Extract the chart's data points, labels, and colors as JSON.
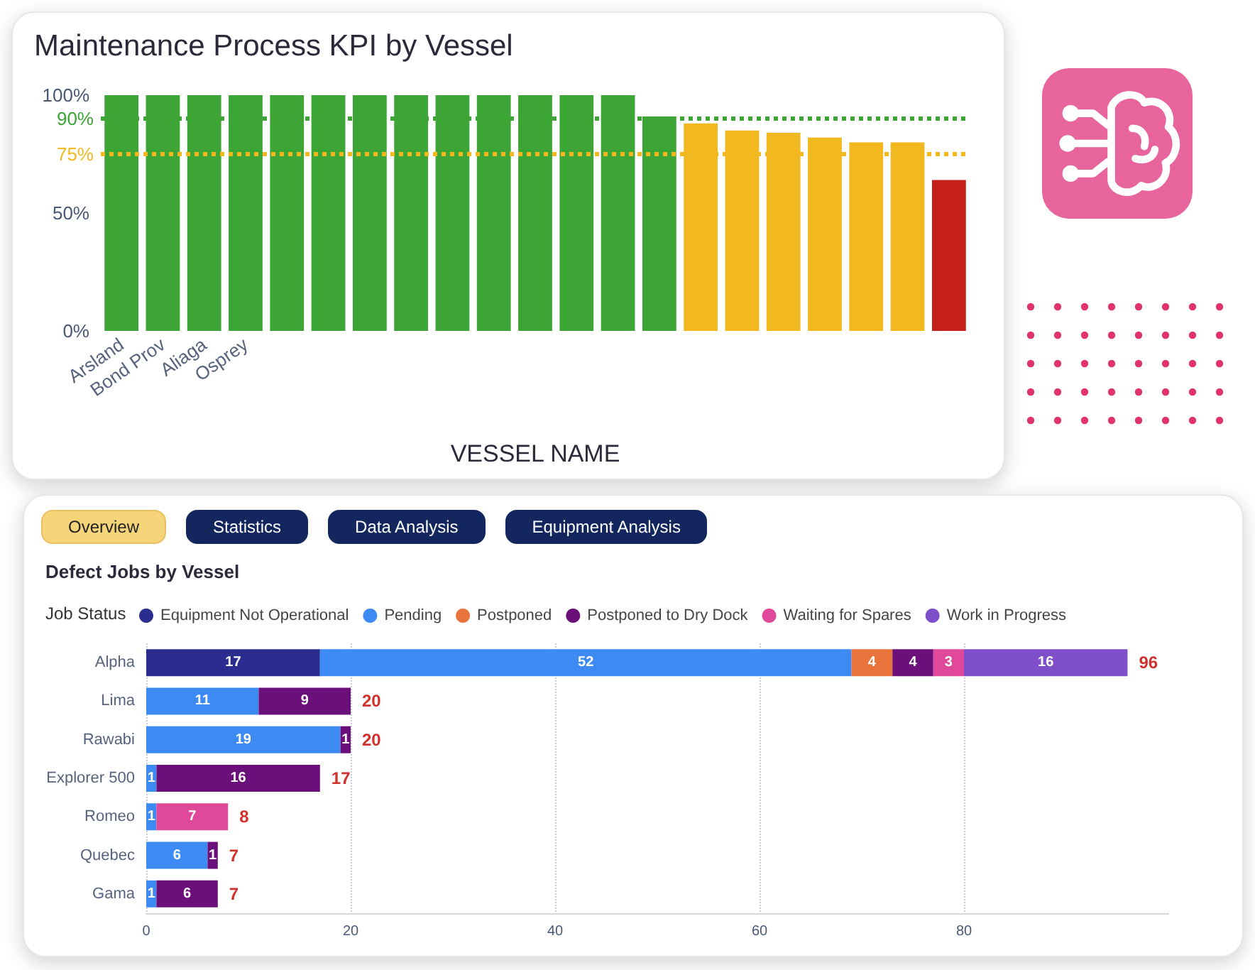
{
  "chart_data": [
    {
      "type": "bar",
      "title": "Maintenance Process KPI by Vessel",
      "xlabel": "VESSEL NAME",
      "categories": [
        "Arsland",
        "Bond Prov",
        "Aliaga",
        "Osprey",
        null,
        null,
        null,
        null,
        null,
        null,
        null,
        null,
        null,
        null,
        null,
        null,
        null,
        null,
        null,
        null,
        null
      ],
      "values": [
        100,
        100,
        100,
        100,
        100,
        100,
        100,
        100,
        100,
        100,
        100,
        100,
        100,
        91,
        88,
        85,
        84,
        82,
        80,
        80,
        64
      ],
      "colors": [
        "#3da535",
        "#3da535",
        "#3da535",
        "#3da535",
        "#3da535",
        "#3da535",
        "#3da535",
        "#3da535",
        "#3da535",
        "#3da535",
        "#3da535",
        "#3da535",
        "#3da535",
        "#3da535",
        "#f2b81f",
        "#f2b81f",
        "#f2b81f",
        "#f2b81f",
        "#f2b81f",
        "#f2b81f",
        "#c41f18"
      ],
      "ylim": [
        0,
        100
      ],
      "yticks": [
        {
          "value": 0,
          "label": "0%"
        },
        {
          "value": 50,
          "label": "50%"
        },
        {
          "value": 100,
          "label": "100%"
        }
      ],
      "ref_lines": [
        {
          "axis": "y",
          "value": 90,
          "label": "90%",
          "color": "#3da535",
          "line_style": "dotted"
        },
        {
          "axis": "y",
          "value": 75,
          "label": "75%",
          "color": "#f2b81f",
          "line_style": "dotted"
        }
      ]
    },
    {
      "type": "bar",
      "orientation": "horizontal",
      "stacked": true,
      "title": "Defect Jobs by Vessel",
      "legend_title": "Job Status",
      "annotations": [
        "Overview",
        "Statistics",
        "Data Analysis",
        "Equipment Analysis"
      ],
      "categories": [
        "Alpha",
        "Lima",
        "Rawabi",
        "Explorer 500",
        "Romeo",
        "Quebec",
        "Gama"
      ],
      "series": [
        {
          "name": "Equipment Not Operational",
          "color": "#2b2d8e",
          "values": [
            17,
            null,
            null,
            null,
            null,
            null,
            null
          ]
        },
        {
          "name": "Pending",
          "color": "#3d8bf2",
          "values": [
            52,
            11,
            19,
            1,
            1,
            6,
            1
          ]
        },
        {
          "name": "Postponed",
          "color": "#e8743b",
          "values": [
            4,
            null,
            null,
            null,
            null,
            null,
            null
          ]
        },
        {
          "name": "Postponed to Dry Dock",
          "color": "#6b0f7a",
          "values": [
            4,
            9,
            1,
            16,
            null,
            1,
            6
          ]
        },
        {
          "name": "Waiting for Spares",
          "color": "#e0489a",
          "values": [
            3,
            null,
            null,
            null,
            7,
            null,
            null
          ]
        },
        {
          "name": "Work in Progress",
          "color": "#7e4fc8",
          "values": [
            16,
            null,
            null,
            null,
            null,
            null,
            null
          ]
        }
      ],
      "data_labels": true,
      "totals": [
        "96",
        "20",
        "20",
        "17",
        "8",
        "7",
        "7"
      ],
      "xlim": [
        0,
        100
      ],
      "xticks": [
        0,
        20,
        40,
        60,
        80
      ],
      "grid": "x",
      "legend": "top left"
    }
  ]
}
